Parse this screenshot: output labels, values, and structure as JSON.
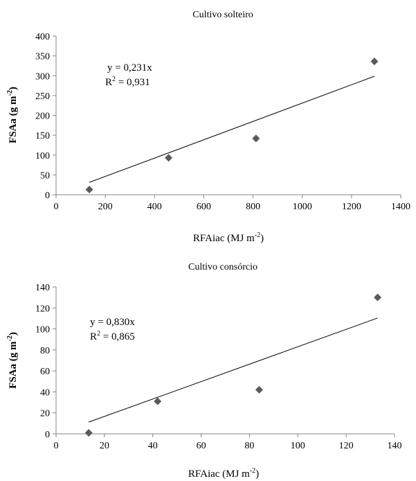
{
  "chart_data": [
    {
      "type": "scatter",
      "title": "Cultivo solteiro",
      "xlabel": "RFAiac (MJ m",
      "xlabel_sup": "-2",
      "xlabel_end": ")",
      "ylabel": "FSAa (g m",
      "ylabel_sup": "-2",
      "ylabel_end": ")",
      "xlim": [
        0,
        1400
      ],
      "ylim": [
        0,
        400
      ],
      "xticks": [
        0,
        200,
        400,
        600,
        800,
        1000,
        1200,
        1400
      ],
      "yticks": [
        0,
        50,
        100,
        150,
        200,
        250,
        300,
        350,
        400
      ],
      "x": [
        135,
        457,
        812,
        1293
      ],
      "y": [
        13,
        93,
        142,
        336
      ],
      "trendline": {
        "slope": 0.231,
        "x_range": [
          135,
          1293
        ]
      },
      "equation": "y = 0,231x",
      "r2_label": "R",
      "r2_sup": "2",
      "r2_value": " = 0,931",
      "grid": false,
      "marker_color": "#595959"
    },
    {
      "type": "scatter",
      "title": "Cultivo consórcio",
      "xlabel": "RFAiac (MJ m",
      "xlabel_sup": "-2",
      "xlabel_end": ")",
      "ylabel": "FSAa (g m",
      "ylabel_sup": "-2",
      "ylabel_end": ")",
      "xlim": [
        0,
        140
      ],
      "ylim": [
        0,
        140
      ],
      "xticks": [
        0,
        20,
        40,
        60,
        80,
        100,
        120,
        140
      ],
      "yticks": [
        0,
        20,
        40,
        60,
        80,
        100,
        120,
        140
      ],
      "x": [
        13.5,
        42,
        84,
        133
      ],
      "y": [
        1,
        31,
        42,
        130
      ],
      "trendline": {
        "slope": 0.83,
        "x_range": [
          13.5,
          133
        ]
      },
      "equation": "y = 0,830x",
      "r2_label": "R",
      "r2_sup": "2",
      "r2_value": " = 0,865",
      "grid": false,
      "marker_color": "#595959"
    }
  ]
}
